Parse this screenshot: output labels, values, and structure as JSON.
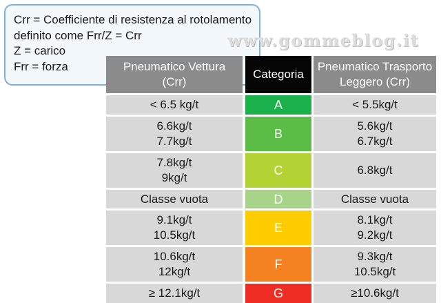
{
  "legend": {
    "lines": [
      "Crr = Coefficiente di resistenza al rotolamento",
      "definito come Frr/Z = Crr",
      "Z = carico",
      "Frr = forza"
    ]
  },
  "watermark": "www.gommeblog.it",
  "table": {
    "headers": {
      "left": [
        "Pneumatico Vettura",
        "(Crr)"
      ],
      "center": "Categoria",
      "right": [
        "Pneumatico Trasporto",
        "Leggero (Crr)"
      ]
    },
    "rows": [
      {
        "grade": "A",
        "color": "#1db14b",
        "left": [
          "< 6.5 kg/t"
        ],
        "right": [
          "< 5.5kg/t"
        ]
      },
      {
        "grade": "B",
        "color": "#5bbd45",
        "left": [
          "6.6kg/t",
          "7.7kg/t"
        ],
        "right": [
          "5.6kg/t",
          "6.7kg/t"
        ]
      },
      {
        "grade": "C",
        "color": "#b3d335",
        "left": [
          "7.8kg/t",
          "9kg/t"
        ],
        "right": [
          "6.8kg/t"
        ]
      },
      {
        "grade": "D",
        "color": "#a8d48a",
        "left": [
          "Classe vuota"
        ],
        "right": [
          "Classe vuota"
        ]
      },
      {
        "grade": "E",
        "color": "#ffcc00",
        "left": [
          "9.1kg/t",
          "10.5kg/t"
        ],
        "right": [
          "8.1kg/t",
          "9.2kg/t"
        ]
      },
      {
        "grade": "F",
        "color": "#f58220",
        "left": [
          "10.6kg/t",
          "12kg/t"
        ],
        "right": [
          "9.3kg/t",
          "10.5kg/t"
        ]
      },
      {
        "grade": "G",
        "color": "#ee2e24",
        "left": [
          "≥ 12.1kg/t"
        ],
        "right": [
          "≥10.6kg/t"
        ]
      }
    ]
  }
}
